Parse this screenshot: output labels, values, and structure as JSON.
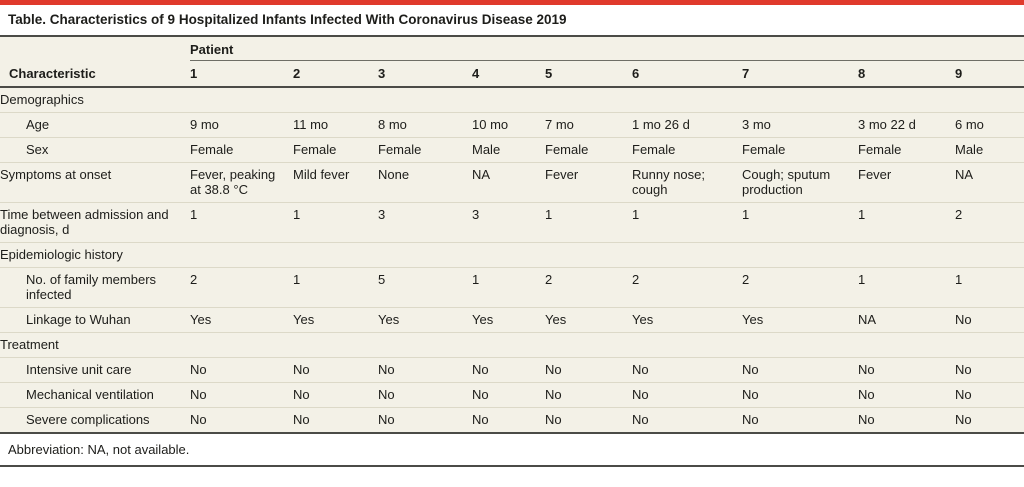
{
  "colors": {
    "accent_red": "#e03a2c",
    "table_bg": "#f3f1e7"
  },
  "title": "Table. Characteristics of 9 Hospitalized Infants Infected With Coronavirus Disease 2019",
  "footnote": "Abbreviation: NA, not available.",
  "table": {
    "group_header": "Patient",
    "characteristic_header": "Characteristic",
    "patient_ids": [
      "1",
      "2",
      "3",
      "4",
      "5",
      "6",
      "7",
      "8",
      "9"
    ],
    "rows": [
      {
        "type": "section",
        "label": "Demographics"
      },
      {
        "type": "data",
        "indent": true,
        "label": "Age",
        "values": [
          "9 mo",
          "11 mo",
          "8 mo",
          "10 mo",
          "7 mo",
          "1 mo 26 d",
          "3 mo",
          "3 mo 22 d",
          "6 mo"
        ]
      },
      {
        "type": "data",
        "indent": true,
        "label": "Sex",
        "values": [
          "Female",
          "Female",
          "Female",
          "Male",
          "Female",
          "Female",
          "Female",
          "Female",
          "Male"
        ]
      },
      {
        "type": "data",
        "indent": false,
        "label": "Symptoms at onset",
        "values": [
          "Fever, peaking at 38.8 °C",
          "Mild fever",
          "None",
          "NA",
          "Fever",
          "Runny nose; cough",
          "Cough; sputum production",
          "Fever",
          "NA"
        ]
      },
      {
        "type": "data",
        "indent": false,
        "label": "Time between admission and diagnosis, d",
        "values": [
          "1",
          "1",
          "3",
          "3",
          "1",
          "1",
          "1",
          "1",
          "2"
        ]
      },
      {
        "type": "section",
        "label": "Epidemiologic history"
      },
      {
        "type": "data",
        "indent": true,
        "label": "No. of family members infected",
        "values": [
          "2",
          "1",
          "5",
          "1",
          "2",
          "2",
          "2",
          "1",
          "1"
        ]
      },
      {
        "type": "data",
        "indent": true,
        "label": "Linkage to Wuhan",
        "values": [
          "Yes",
          "Yes",
          "Yes",
          "Yes",
          "Yes",
          "Yes",
          "Yes",
          "NA",
          "No"
        ]
      },
      {
        "type": "section",
        "label": "Treatment"
      },
      {
        "type": "data",
        "indent": true,
        "label": "Intensive unit care",
        "values": [
          "No",
          "No",
          "No",
          "No",
          "No",
          "No",
          "No",
          "No",
          "No"
        ]
      },
      {
        "type": "data",
        "indent": true,
        "label": "Mechanical ventilation",
        "values": [
          "No",
          "No",
          "No",
          "No",
          "No",
          "No",
          "No",
          "No",
          "No"
        ]
      },
      {
        "type": "data",
        "indent": true,
        "label": "Severe complications",
        "values": [
          "No",
          "No",
          "No",
          "No",
          "No",
          "No",
          "No",
          "No",
          "No"
        ]
      }
    ]
  }
}
